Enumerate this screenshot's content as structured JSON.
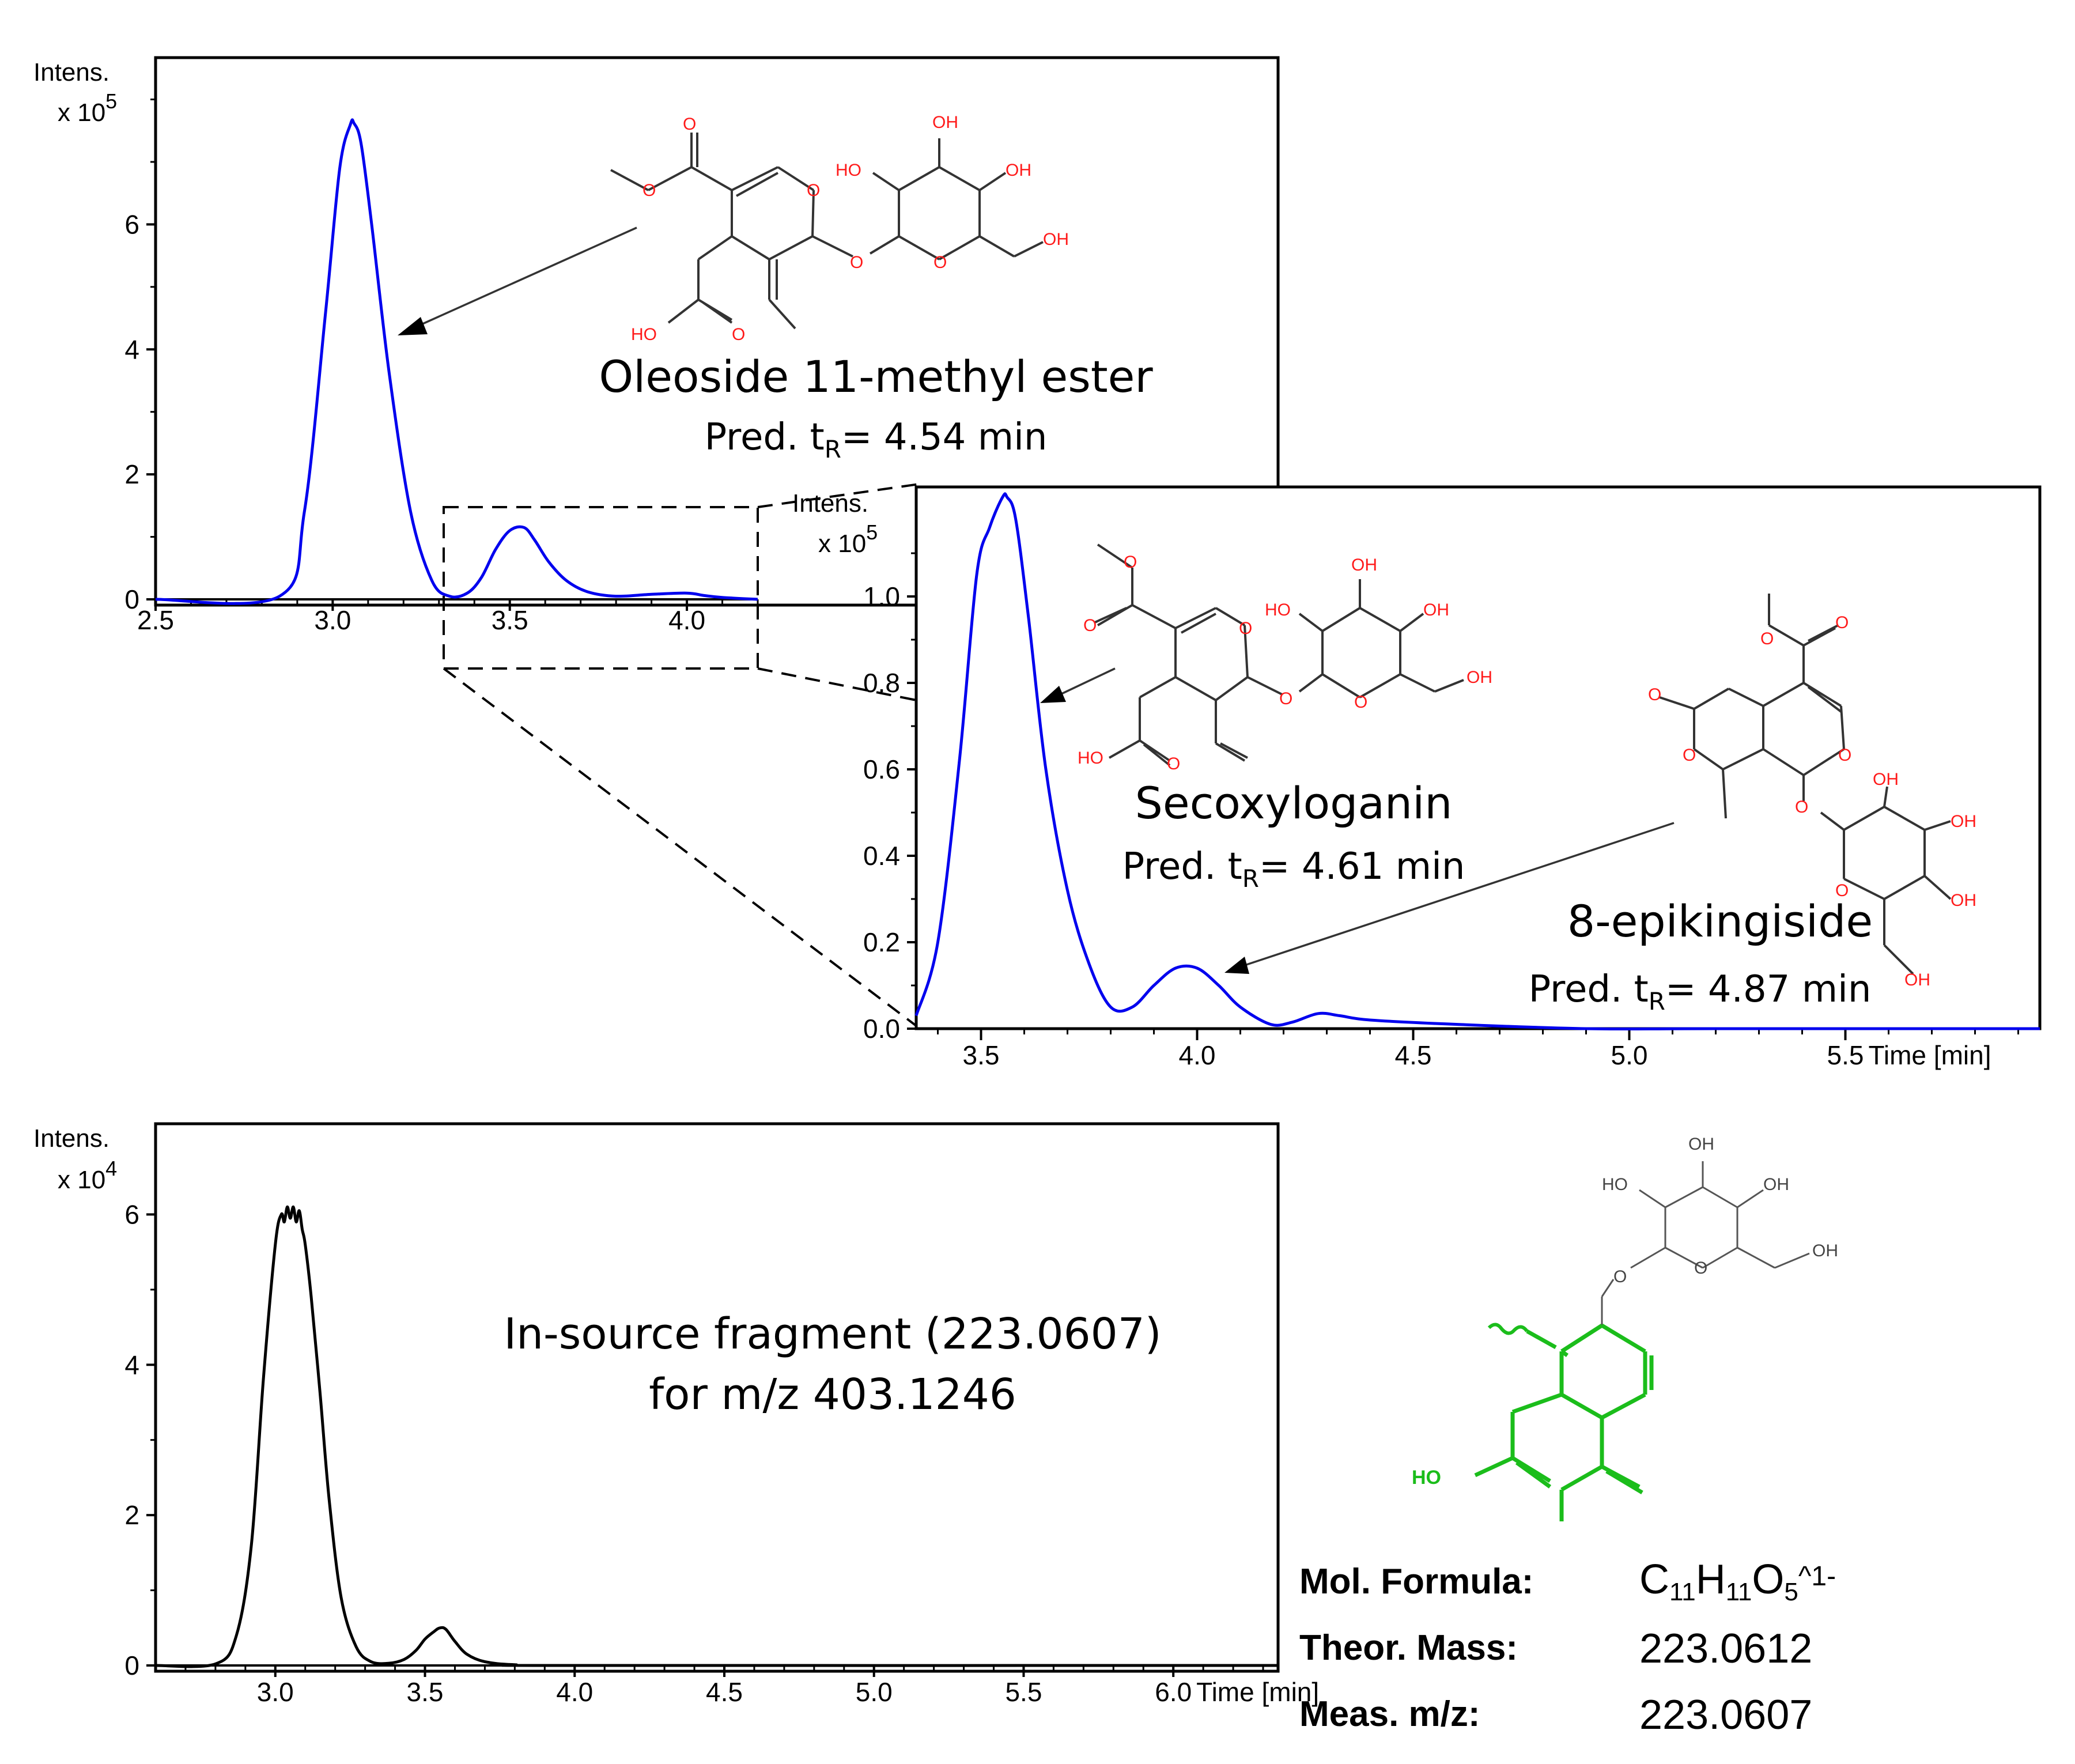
{
  "chart_data": [
    {
      "id": "top",
      "type": "line",
      "ylabel": "Intens.",
      "y_multiplier": "x 10",
      "y_exponent": "5",
      "x_ticks": [
        "2.5",
        "3.0",
        "3.5",
        "4.0"
      ],
      "y_ticks": [
        "0",
        "2",
        "4",
        "6"
      ],
      "xlim": [
        2.5,
        4.2
      ],
      "ylim": [
        0,
        8.3
      ],
      "line_color": "#0000ee",
      "series": [
        {
          "x": [
            2.5,
            2.85,
            2.92,
            2.98,
            3.02,
            3.05,
            3.06,
            3.08,
            3.11,
            3.16,
            3.22,
            3.28,
            3.33,
            3.38,
            3.42,
            3.46,
            3.5,
            3.54,
            3.57,
            3.61,
            3.66,
            3.72,
            3.8,
            3.9,
            4.0,
            4.05,
            4.1,
            4.2
          ],
          "y": [
            0,
            0.05,
            1.4,
            4.6,
            6.9,
            7.6,
            7.62,
            7.3,
            6.0,
            3.6,
            1.4,
            0.3,
            0.05,
            0.1,
            0.35,
            0.8,
            1.1,
            1.15,
            0.95,
            0.6,
            0.3,
            0.12,
            0.05,
            0.08,
            0.1,
            0.06,
            0.03,
            0.0
          ]
        }
      ],
      "annotations": {
        "compound": "Oleoside 11-methyl ester",
        "pred_prefix": "Pred. t",
        "pred_sub": "R",
        "pred_suffix": "= 4.54 min"
      }
    },
    {
      "id": "zoom",
      "type": "line",
      "ylabel": "Intens.",
      "y_multiplier": "x 10",
      "y_exponent": "5",
      "xlabel": "Time [min]",
      "x_ticks": [
        "3.5",
        "4.0",
        "4.5",
        "5.0",
        "5.5"
      ],
      "y_ticks": [
        "0.0",
        "0.2",
        "0.4",
        "0.6",
        "0.8",
        "1.0"
      ],
      "xlim": [
        3.35,
        5.95
      ],
      "ylim": [
        0,
        1.2
      ],
      "line_color": "#0000ee",
      "series": [
        {
          "x": [
            3.35,
            3.4,
            3.45,
            3.49,
            3.52,
            3.55,
            3.56,
            3.58,
            3.61,
            3.65,
            3.7,
            3.75,
            3.8,
            3.85,
            3.9,
            3.95,
            4.0,
            4.05,
            4.1,
            4.17,
            4.22,
            4.28,
            4.33,
            4.4,
            4.6,
            4.9,
            5.2,
            5.95
          ],
          "y": [
            0.03,
            0.2,
            0.62,
            1.05,
            1.16,
            1.23,
            1.23,
            1.18,
            0.95,
            0.6,
            0.32,
            0.15,
            0.05,
            0.05,
            0.1,
            0.14,
            0.14,
            0.1,
            0.05,
            0.01,
            0.015,
            0.035,
            0.03,
            0.02,
            0.01,
            0.0,
            0.0,
            0.0
          ]
        }
      ],
      "annotations": {
        "compound1": "Secoxyloganin",
        "pred1_prefix": "Pred. t",
        "pred1_sub": "R",
        "pred1_suffix": "= 4.61 min",
        "compound2": "8-epikingiside",
        "pred2_prefix": "Pred. t",
        "pred2_sub": "R",
        "pred2_suffix": "= 4.87 min"
      }
    },
    {
      "id": "bottom",
      "type": "line",
      "ylabel": "Intens.",
      "y_multiplier": "x 10",
      "y_exponent": "4",
      "xlabel": "Time [min]",
      "x_ticks": [
        "3.0",
        "3.5",
        "4.0",
        "4.5",
        "5.0",
        "5.5",
        "6.0"
      ],
      "y_ticks": [
        "0",
        "2",
        "4",
        "6"
      ],
      "xlim": [
        2.6,
        6.35
      ],
      "ylim": [
        0,
        6.9
      ],
      "line_color": "#000000",
      "series": [
        {
          "x": [
            2.6,
            2.8,
            2.87,
            2.92,
            2.96,
            3.0,
            3.02,
            3.03,
            3.04,
            3.05,
            3.06,
            3.07,
            3.08,
            3.09,
            3.1,
            3.12,
            3.15,
            3.18,
            3.22,
            3.27,
            3.32,
            3.38,
            3.43,
            3.47,
            3.5,
            3.53,
            3.55,
            3.57,
            3.6,
            3.64,
            3.7,
            3.8,
            4.0,
            6.35
          ],
          "y": [
            0,
            0.02,
            0.4,
            1.6,
            3.8,
            5.6,
            6.0,
            5.9,
            6.1,
            5.95,
            6.1,
            5.9,
            6.05,
            5.8,
            5.6,
            4.9,
            3.6,
            2.2,
            0.9,
            0.25,
            0.05,
            0.03,
            0.08,
            0.2,
            0.35,
            0.45,
            0.5,
            0.48,
            0.32,
            0.15,
            0.05,
            0.01,
            0.0,
            0.0
          ]
        }
      ],
      "annotations": {
        "line1": "In-source fragment (223.0607)",
        "line2": "for m/z 403.1246"
      }
    }
  ],
  "molecule_labels": {
    "o": "O",
    "oh": "OH",
    "ho": "HO"
  },
  "colors": {
    "trace_blue": "#0000ee",
    "trace_black": "#000000",
    "oxygen_red": "#ff1a1a",
    "fragment_green": "#1bbd1b"
  },
  "info": {
    "formula_label": "Mol. Formula:",
    "formula_c": "C",
    "formula_c_sub": "11",
    "formula_h": "H",
    "formula_h_sub": "11",
    "formula_o": "O",
    "formula_o_sub": "5",
    "formula_charge": "^1-",
    "theor_label": "Theor. Mass:",
    "theor_value": "223.0612",
    "meas_label": "Meas. m/z:",
    "meas_value": "223.0607"
  }
}
